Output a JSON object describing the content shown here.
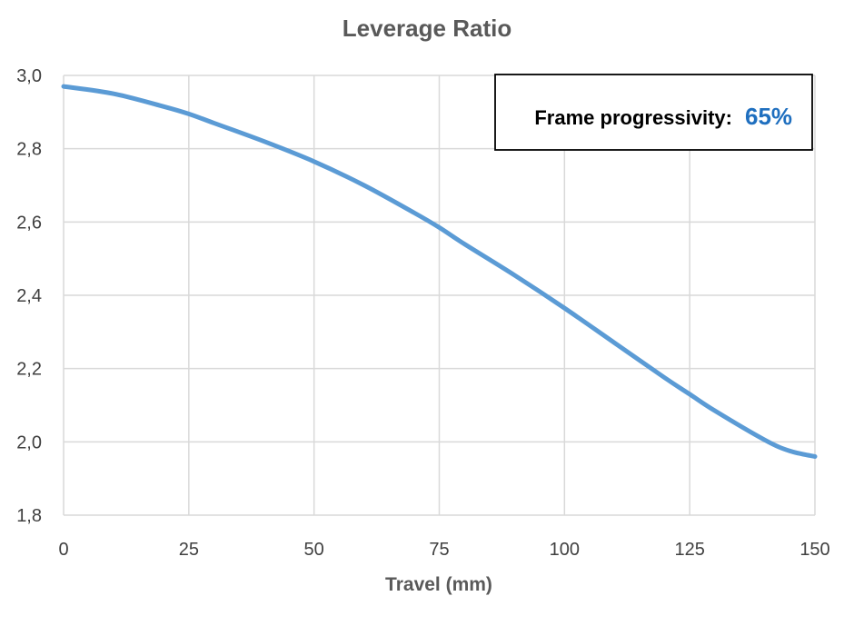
{
  "chart_data": {
    "type": "line",
    "title": "Leverage Ratio",
    "xlabel": "Travel (mm)",
    "ylabel": "",
    "xlim": [
      0,
      150
    ],
    "ylim": [
      1.8,
      3.0
    ],
    "x_ticks": [
      0,
      25,
      50,
      75,
      100,
      125,
      150
    ],
    "x_tick_labels": [
      "0",
      "25",
      "50",
      "75",
      "100",
      "125",
      "150"
    ],
    "y_ticks": [
      1.8,
      2.0,
      2.2,
      2.4,
      2.6,
      2.8,
      3.0
    ],
    "y_tick_labels": [
      "1,8",
      "2,0",
      "2,2",
      "2,4",
      "2,6",
      "2,8",
      "3,0"
    ],
    "grid": true,
    "legend": "none",
    "series": [
      {
        "color": "#5b9bd5",
        "x": [
          0,
          10,
          20,
          25,
          30,
          40,
          50,
          60,
          70,
          75,
          80,
          90,
          100,
          110,
          120,
          125,
          130,
          140,
          145,
          150
        ],
        "y": [
          2.97,
          2.95,
          2.915,
          2.895,
          2.87,
          2.82,
          2.765,
          2.7,
          2.625,
          2.585,
          2.54,
          2.455,
          2.365,
          2.27,
          2.175,
          2.13,
          2.085,
          2.005,
          1.975,
          1.96
        ]
      }
    ],
    "annotations": [
      {
        "label": "Frame progressivity:",
        "value": "65%",
        "value_color": "#1f6fbf",
        "position": "top-right"
      }
    ]
  }
}
